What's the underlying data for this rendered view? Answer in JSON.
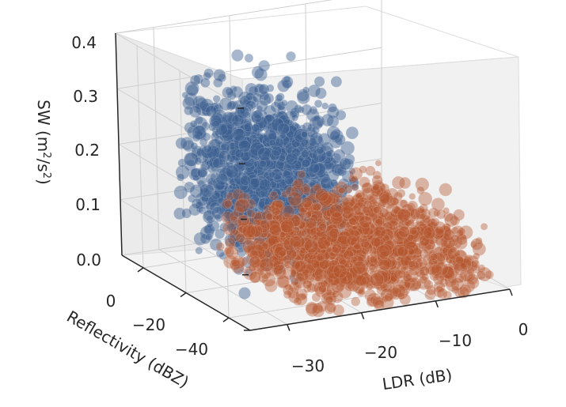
{
  "chart_data": {
    "type": "scatter",
    "projection": "3d",
    "title": "",
    "axes": {
      "x": {
        "label": "LDR (dB)",
        "lim": [
          -35,
          0
        ],
        "ticks": [
          -30,
          -20,
          -10,
          0
        ],
        "tick_labels": [
          "−30",
          "−20",
          "−10",
          "0"
        ]
      },
      "y": {
        "label": "Reflectivity (dBZ)",
        "lim": [
          -50,
          10
        ],
        "ticks": [
          0,
          -20,
          -40
        ],
        "tick_labels": [
          "0",
          "−20",
          "−40"
        ]
      },
      "z": {
        "label_main": "SW (m",
        "label_sup1": "2",
        "label_mid": "/s",
        "label_sup2": "2",
        "label_end": ")",
        "lim": [
          0,
          0.4
        ],
        "ticks": [
          0,
          0.1,
          0.2,
          0.3,
          0.4
        ],
        "tick_labels": [
          "0.0",
          "0.1",
          "0.2",
          "0.3",
          "0.4"
        ]
      }
    },
    "grid": true,
    "series": [
      {
        "color": "#3b5f90",
        "alpha": 0.45,
        "approx_count": 2200,
        "x_range": [
          -33,
          -20
        ],
        "y_range": [
          -30,
          10
        ],
        "z_range": [
          0.0,
          0.41
        ],
        "z_center": 0.22
      },
      {
        "color": "#b5552e",
        "alpha": 0.4,
        "approx_count": 1800,
        "x_range": [
          -25,
          -2
        ],
        "y_range": [
          -40,
          8
        ],
        "z_range": [
          0.0,
          0.21
        ],
        "z_center": 0.05
      }
    ]
  }
}
